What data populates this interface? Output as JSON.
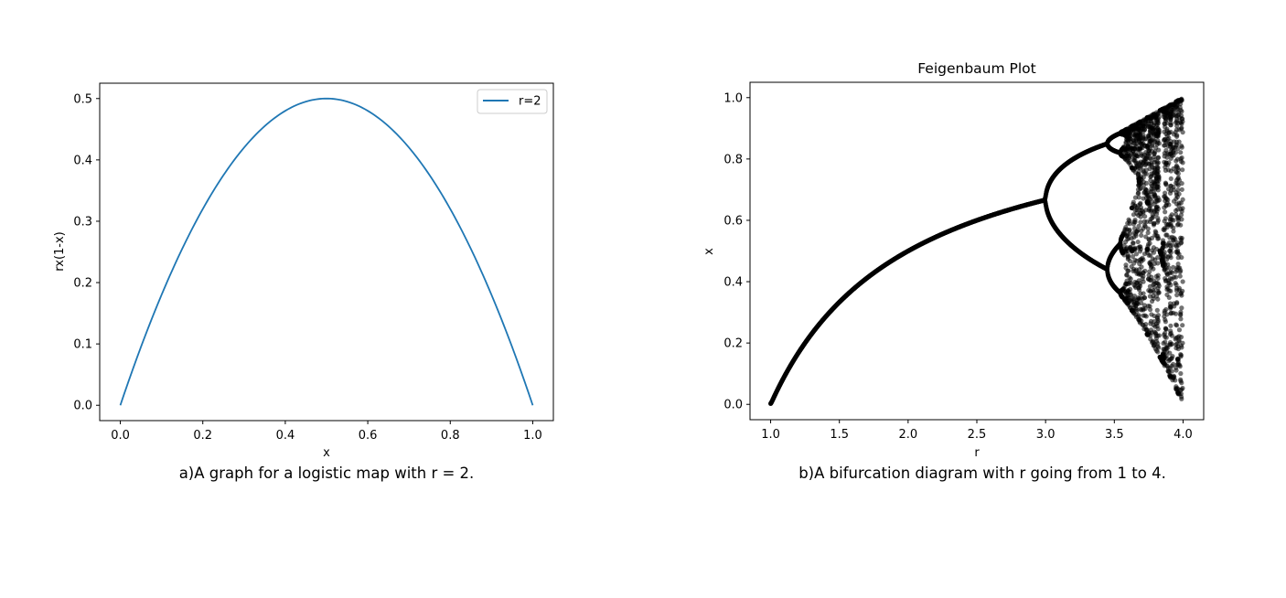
{
  "chart_data": [
    {
      "type": "line",
      "title": "",
      "xlabel": "x",
      "ylabel": "rx(1-x)",
      "xlim": [
        -0.05,
        1.05
      ],
      "ylim": [
        -0.025,
        0.525
      ],
      "xticks": [
        "0.0",
        "0.2",
        "0.4",
        "0.6",
        "0.8",
        "1.0"
      ],
      "yticks": [
        "0.0",
        "0.1",
        "0.2",
        "0.3",
        "0.4",
        "0.5"
      ],
      "grid": false,
      "legend_position": "top-right",
      "caption": "a)A graph for a logistic map with r = 2.",
      "series": [
        {
          "name": "r=2",
          "color": "#1f77b4",
          "x": [
            0.0,
            0.05,
            0.1,
            0.15,
            0.2,
            0.25,
            0.3,
            0.35,
            0.4,
            0.45,
            0.5,
            0.55,
            0.6,
            0.65,
            0.7,
            0.75,
            0.8,
            0.85,
            0.9,
            0.95,
            1.0
          ],
          "values": [
            0.0,
            0.095,
            0.18,
            0.255,
            0.32,
            0.375,
            0.42,
            0.455,
            0.48,
            0.495,
            0.5,
            0.495,
            0.48,
            0.455,
            0.42,
            0.375,
            0.32,
            0.255,
            0.18,
            0.095,
            0.0
          ]
        }
      ]
    },
    {
      "type": "scatter",
      "title": "Feigenbaum Plot",
      "xlabel": "r",
      "ylabel": "x",
      "xlim": [
        0.85,
        4.15
      ],
      "ylim": [
        -0.05,
        1.05
      ],
      "xticks": [
        "1.0",
        "1.5",
        "2.0",
        "2.5",
        "3.0",
        "3.5",
        "4.0"
      ],
      "yticks": [
        "0.0",
        "0.2",
        "0.4",
        "0.6",
        "0.8",
        "1.0"
      ],
      "grid": false,
      "caption": "b)A bifurcation diagram with r going from 1 to 4.",
      "series": [
        {
          "color": "#000000",
          "description": "attractor points x_n of the logistic map x -> r x (1-x) for r from 1 to 4",
          "r_range": [
            1.0,
            4.0
          ],
          "x_range": [
            0.0,
            1.0
          ]
        }
      ]
    }
  ]
}
